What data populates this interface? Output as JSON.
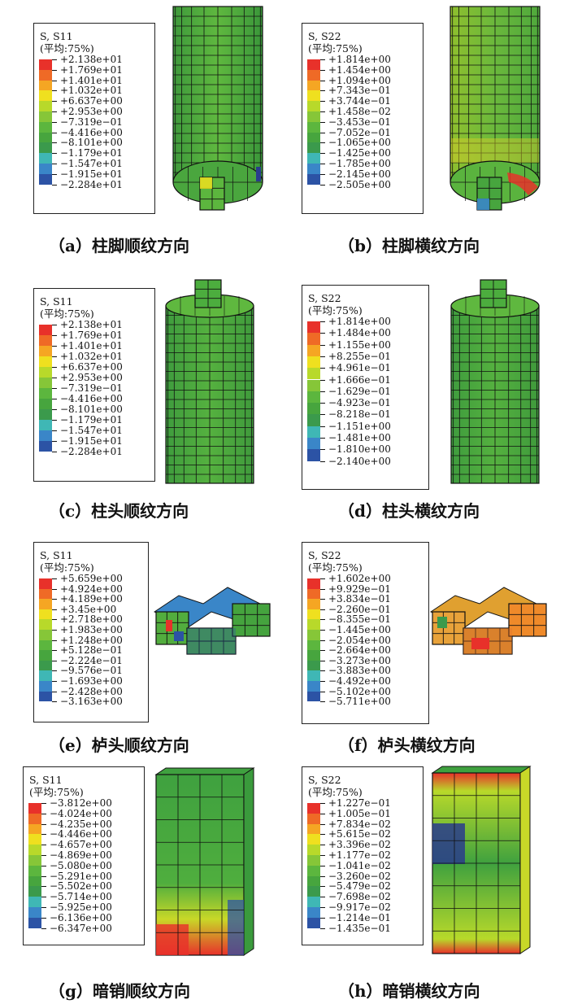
{
  "colors": [
    "#e8312a",
    "#ef6a26",
    "#f5a623",
    "#efe01f",
    "#b8d92a",
    "#86c638",
    "#5cb63e",
    "#47a53e",
    "#3b9a4c",
    "#3fb7b5",
    "#3a86c8",
    "#2c53a5",
    "#2a3c8c"
  ],
  "panels": [
    {
      "id": "a",
      "variable": "S, S11",
      "averaging": "(平均:75%)",
      "values": [
        "+2.138e+01",
        "+1.769e+01",
        "+1.401e+01",
        "+1.032e+01",
        "+6.637e+00",
        "+2.953e+00",
        "−7.319e−01",
        "−4.416e+00",
        "−8.101e+00",
        "−1.179e+01",
        "−1.547e+01",
        "−1.915e+01",
        "−2.284e+01"
      ],
      "caption": "（a）柱脚顺纹方向",
      "icon": "column-base-model-icon"
    },
    {
      "id": "b",
      "variable": "S, S22",
      "averaging": "(平均:75%)",
      "values": [
        "+1.814e+00",
        "+1.454e+00",
        "+1.094e+00",
        "+7.343e−01",
        "+3.744e−01",
        "+1.458e−02",
        "−3.453e−01",
        "−7.052e−01",
        "−1.065e+00",
        "−1.425e+00",
        "−1.785e+00",
        "−2.145e+00",
        "−2.505e+00"
      ],
      "caption": "（b）柱脚横纹方向",
      "icon": "column-base-model-icon"
    },
    {
      "id": "c",
      "variable": "S, S11",
      "averaging": "(平均:75%)",
      "values": [
        "+2.138e+01",
        "+1.769e+01",
        "+1.401e+01",
        "+1.032e+01",
        "+6.637e+00",
        "+2.953e+00",
        "−7.319e−01",
        "−4.416e+00",
        "−8.101e+00",
        "−1.179e+01",
        "−1.547e+01",
        "−1.915e+01",
        "−2.284e+01"
      ],
      "caption": "（c）柱头顺纹方向",
      "icon": "column-head-model-icon"
    },
    {
      "id": "d",
      "variable": "S, S22",
      "averaging": "(平均:75%)",
      "values": [
        "+1.814e+00",
        "+1.484e+00",
        "+1.155e+00",
        "+8.255e−01",
        "+4.961e−01",
        "+1.666e−01",
        "−1.629e−01",
        "−4.923e−01",
        "−8.218e−01",
        "−1.151e+00",
        "−1.481e+00",
        "−1.810e+00",
        "−2.140e+00"
      ],
      "caption": "（d）柱头横纹方向",
      "icon": "column-head-model-icon"
    },
    {
      "id": "e",
      "variable": "S, S11",
      "averaging": "(平均:75%)",
      "values": [
        "+5.659e+00",
        "+4.924e+00",
        "+4.189e+00",
        "+3.45e+00",
        "+2.718e+00",
        "+1.983e+00",
        "+1.248e+00",
        "+5.128e−01",
        "−2.224e−01",
        "−9.576e−01",
        "−1.693e+00",
        "−2.428e+00",
        "−3.163e+00"
      ],
      "caption": "（e）栌头顺纹方向",
      "icon": "lutou-block-model-icon"
    },
    {
      "id": "f",
      "variable": "S, S22",
      "averaging": "(平均:75%)",
      "values": [
        "+1.602e+00",
        "+9.929e−01",
        "+3.834e−01",
        "−2.260e−01",
        "−8.355e−01",
        "−1.445e+00",
        "−2.054e+00",
        "−2.664e+00",
        "−3.273e+00",
        "−3.883e+00",
        "−4.492e+00",
        "−5.102e+00",
        "−5.711e+00"
      ],
      "caption": "（f）栌头横纹方向",
      "icon": "lutou-block-model-icon"
    },
    {
      "id": "g",
      "variable": "S, S11",
      "averaging": "(平均:75%)",
      "values": [
        "−3.812e+00",
        "−4.024e+00",
        "−4.235e+00",
        "−4.446e+00",
        "−4.657e+00",
        "−4.869e+00",
        "−5.080e+00",
        "−5.291e+00",
        "−5.502e+00",
        "−5.714e+00",
        "−5.925e+00",
        "−6.136e+00",
        "−6.347e+00"
      ],
      "caption": "（g）暗销顺纹方向",
      "icon": "dowel-block-model-icon"
    },
    {
      "id": "h",
      "variable": "S, S22",
      "averaging": "(平均:75%)",
      "values": [
        "+1.227e−01",
        "+1.005e−01",
        "+7.834e−02",
        "+5.615e−02",
        "+3.396e−02",
        "+1.177e−02",
        "−1.041e−02",
        "−3.260e−02",
        "−5.479e−02",
        "−7.698e−02",
        "−9.917e−02",
        "−1.214e−01",
        "−1.435e−01"
      ],
      "caption": "（h）暗销横纹方向",
      "icon": "dowel-block-model-icon"
    }
  ]
}
